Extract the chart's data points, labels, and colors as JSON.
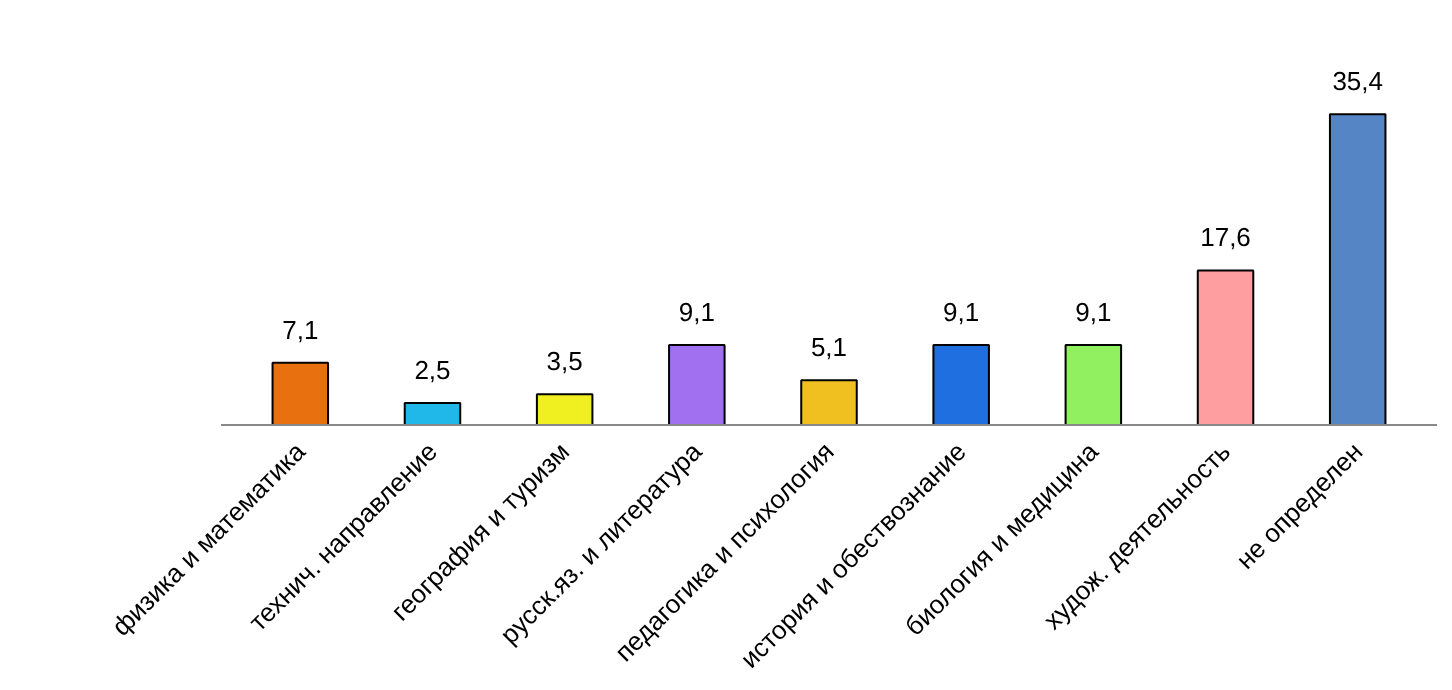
{
  "chart_data": {
    "type": "bar",
    "categories": [
      "физика и математика",
      "технич. направление",
      "география и туризм",
      "русск.яз. и литература",
      "педагогика и психология",
      "история и обествознание",
      "биология и медицина",
      "худож. деятельность",
      "не определен"
    ],
    "values": [
      7.1,
      2.5,
      3.5,
      9.1,
      5.1,
      9.1,
      9.1,
      17.6,
      35.4
    ],
    "value_labels": [
      "7,1",
      "2,5",
      "3,5",
      "9,1",
      "5,1",
      "9,1",
      "9,1",
      "17,6",
      "35,4"
    ],
    "colors": [
      "#e8700f",
      "#1fb8e8",
      "#f0f020",
      "#a070f0",
      "#f0c020",
      "#1f6fe0",
      "#90f060",
      "#ff9ea0",
      "#5585c5"
    ]
  }
}
